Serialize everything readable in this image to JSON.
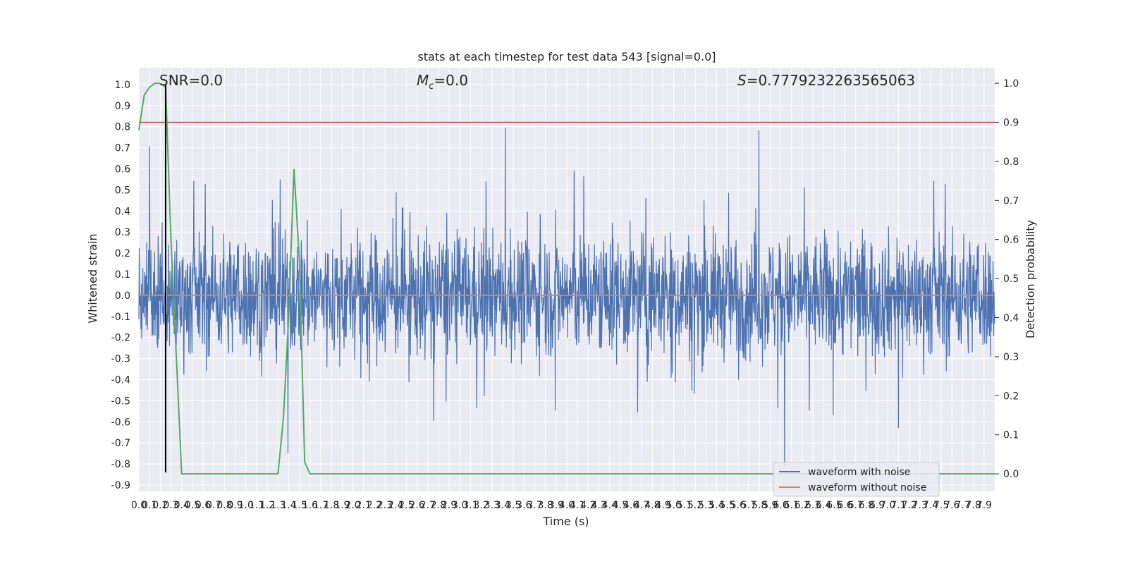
{
  "chart_data": {
    "type": "line",
    "title": "stats at each timestep for test data 543 [signal=0.0]",
    "xlabel": "Time (s)",
    "ylabel": "Whitened strain",
    "y2label": "Detection probability",
    "xlim": [
      0,
      8
    ],
    "ylim": [
      -0.93,
      1.08
    ],
    "y2lim": [
      -0.045,
      1.04
    ],
    "x_ticks": [
      0.0,
      0.1,
      0.2,
      0.3,
      0.4,
      0.5,
      0.6,
      0.7,
      0.8,
      0.9,
      1.0,
      1.1,
      1.2,
      1.3,
      1.4,
      1.5,
      1.6,
      1.7,
      1.8,
      1.9,
      2.0,
      2.1,
      2.2,
      2.3,
      2.4,
      2.5,
      2.6,
      2.7,
      2.8,
      2.9,
      3.0,
      3.1,
      3.2,
      3.3,
      3.4,
      3.5,
      3.6,
      3.7,
      3.8,
      3.9,
      4.0,
      4.1,
      4.2,
      4.3,
      4.4,
      4.5,
      4.6,
      4.7,
      4.8,
      4.9,
      5.0,
      5.1,
      5.2,
      5.3,
      5.4,
      5.5,
      5.6,
      5.7,
      5.8,
      5.9,
      6.0,
      6.1,
      6.2,
      6.3,
      6.4,
      6.5,
      6.6,
      6.7,
      6.8,
      6.9,
      7.0,
      7.1,
      7.2,
      7.3,
      7.4,
      7.5,
      7.6,
      7.7,
      7.8,
      7.9
    ],
    "y_ticks": [
      1.0,
      0.9,
      0.8,
      0.7,
      0.6,
      0.5,
      0.4,
      0.3,
      0.2,
      0.1,
      0.0,
      -0.1,
      -0.2,
      -0.3,
      -0.4,
      -0.5,
      -0.6,
      -0.7,
      -0.8,
      -0.9
    ],
    "y2_ticks": [
      1.0,
      0.9,
      0.8,
      0.7,
      0.6,
      0.5,
      0.4,
      0.3,
      0.2,
      0.1,
      0.0
    ],
    "annotations": {
      "snr": "SNR=0.0",
      "mc_symbol": "M",
      "mc_sub": "c",
      "mc_value": "=0.0",
      "s_symbol": "S",
      "s_value": "=0.7779232263565063"
    },
    "series": [
      {
        "name": "waveform with noise",
        "color": "#4c72b0",
        "style": "noise",
        "amplitude_range": [
          -0.84,
          0.83
        ]
      },
      {
        "name": "waveform without noise",
        "color": "#dd8452",
        "values_y": 0.0
      }
    ],
    "detection_probability": {
      "color": "#55a868",
      "x": [
        0.0,
        0.05,
        0.1,
        0.15,
        0.2,
        0.25,
        0.3,
        0.35,
        0.4,
        0.45,
        0.5,
        1.25,
        1.3,
        1.35,
        1.4,
        1.45,
        1.5,
        1.55,
        1.6,
        8.0
      ],
      "y": [
        0.88,
        0.97,
        0.99,
        1.0,
        1.0,
        0.99,
        0.6,
        0.3,
        0.0,
        0.0,
        0.0,
        0.0,
        0.0,
        0.14,
        0.4,
        0.78,
        0.55,
        0.03,
        0.0,
        0.0
      ]
    },
    "threshold": {
      "color": "#c44e52",
      "y2": 0.9
    },
    "marker_line": {
      "color": "#000000",
      "x": 0.25,
      "y_from": -0.84,
      "y_to": 1.0
    },
    "legend": "lower-right",
    "grid": true
  }
}
